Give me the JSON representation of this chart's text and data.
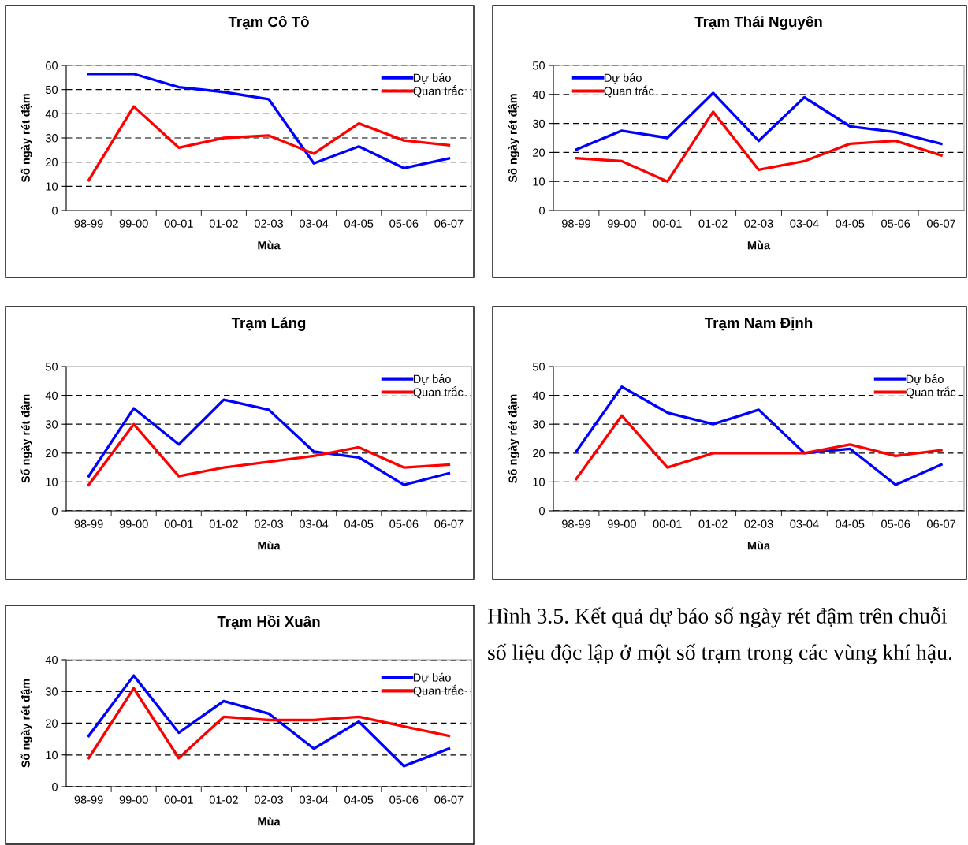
{
  "chart_data": [
    {
      "type": "line",
      "title": "Trạm Cô Tô",
      "xlabel": "Mùa",
      "ylabel": "Số ngày rét đậm",
      "categories": [
        "98-99",
        "99-00",
        "00-01",
        "01-02",
        "02-03",
        "03-04",
        "04-05",
        "05-06",
        "06-07"
      ],
      "ylim": [
        0,
        60
      ],
      "yticks": [
        0,
        10,
        20,
        30,
        40,
        50,
        60
      ],
      "grid": "y",
      "legend": "top right",
      "line_style": "solid",
      "series": [
        {
          "name": "Dự báo",
          "color": "#0000ff",
          "values": [
            56.5,
            56.5,
            51,
            49,
            46,
            19.5,
            26.5,
            17.5,
            21.5
          ]
        },
        {
          "name": "Quan trắc",
          "color": "#ff0000",
          "values": [
            12.5,
            43,
            26,
            30,
            31,
            23.5,
            36,
            29,
            27
          ]
        }
      ]
    },
    {
      "type": "line",
      "title": "Trạm Thái Nguyên",
      "xlabel": "Mùa",
      "ylabel": "Số ngày rét đậm",
      "categories": [
        "98-99",
        "99-00",
        "00-01",
        "01-02",
        "02-03",
        "03-04",
        "04-05",
        "05-06",
        "06-07"
      ],
      "ylim": [
        0,
        50
      ],
      "yticks": [
        0,
        10,
        20,
        30,
        40,
        50
      ],
      "grid": "y",
      "legend": "top left",
      "line_style": "solid",
      "series": [
        {
          "name": "Dự báo",
          "color": "#0000ff",
          "values": [
            21,
            27.5,
            25,
            40.5,
            24,
            39,
            29,
            27,
            23
          ]
        },
        {
          "name": "Quan trắc",
          "color": "#ff0000",
          "values": [
            18,
            17,
            10,
            34,
            14,
            17,
            23,
            24,
            19
          ]
        }
      ]
    },
    {
      "type": "line",
      "title": "Trạm Láng",
      "xlabel": "Mùa",
      "ylabel": "Số ngày rét đậm",
      "categories": [
        "98-99",
        "99-00",
        "00-01",
        "01-02",
        "02-03",
        "03-04",
        "04-05",
        "05-06",
        "06-07"
      ],
      "ylim": [
        0,
        50
      ],
      "yticks": [
        0,
        10,
        20,
        30,
        40,
        50
      ],
      "grid": "y",
      "legend": "top right",
      "line_style": "solid",
      "series": [
        {
          "name": "Dự báo",
          "color": "#0000ff",
          "values": [
            12,
            35.5,
            23,
            38.5,
            35,
            20.5,
            18.5,
            9,
            13
          ]
        },
        {
          "name": "Quan trắc",
          "color": "#ff0000",
          "values": [
            9,
            30,
            12,
            15,
            17,
            19,
            22,
            15,
            16
          ]
        }
      ]
    },
    {
      "type": "line",
      "title": "Trạm Nam Định",
      "xlabel": "Mùa",
      "ylabel": "Số ngày rét đậm",
      "categories": [
        "98-99",
        "99-00",
        "00-01",
        "01-02",
        "02-03",
        "03-04",
        "04-05",
        "05-06",
        "06-07"
      ],
      "ylim": [
        0,
        50
      ],
      "yticks": [
        0,
        10,
        20,
        30,
        40,
        50
      ],
      "grid": "y",
      "legend": "top right",
      "line_style": "solid",
      "series": [
        {
          "name": "Dự báo",
          "color": "#0000ff",
          "values": [
            20.5,
            43,
            34,
            30,
            35,
            20,
            21.5,
            9,
            16
          ]
        },
        {
          "name": "Quan trắc",
          "color": "#ff0000",
          "values": [
            11,
            33,
            15,
            20,
            20,
            20,
            23,
            19,
            21
          ]
        }
      ]
    },
    {
      "type": "line",
      "title": "Trạm Hồi Xuân",
      "xlabel": "Mùa",
      "ylabel": "Số ngày rét đậm",
      "categories": [
        "98-99",
        "99-00",
        "00-01",
        "01-02",
        "02-03",
        "03-04",
        "04-05",
        "05-06",
        "06-07"
      ],
      "ylim": [
        0,
        40
      ],
      "yticks": [
        0,
        10,
        20,
        30,
        40
      ],
      "grid": "y",
      "legend": "right",
      "line_style": "solid",
      "series": [
        {
          "name": "Dự báo",
          "color": "#0000ff",
          "values": [
            16,
            35,
            17,
            27,
            23,
            12,
            20.5,
            6.5,
            12
          ]
        },
        {
          "name": "Quan trắc",
          "color": "#ff0000",
          "values": [
            9,
            31,
            9,
            22,
            21,
            21,
            22,
            19,
            16
          ]
        }
      ]
    },
    {
      "type": "other",
      "annotations": [
        "Hình 3.5. Kết quả dự báo số ngày rét đậm trên chuỗi số liệu độc lập ở một số trạm trong các vùng khí hậu."
      ]
    }
  ]
}
